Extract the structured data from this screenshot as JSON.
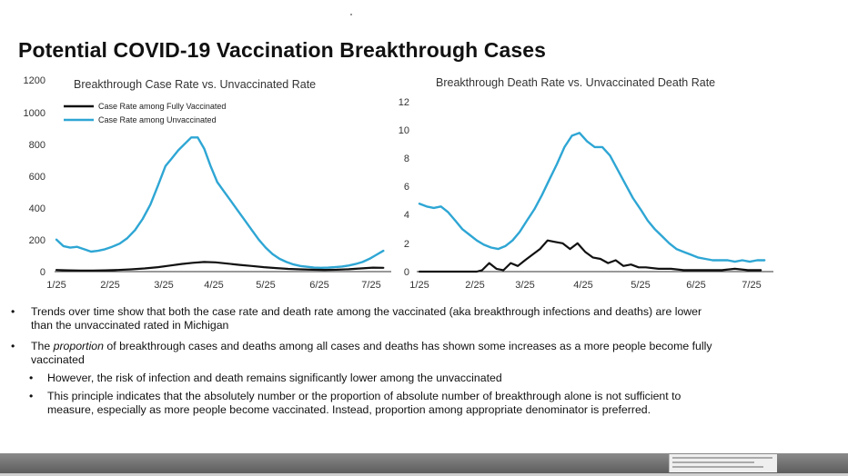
{
  "slide": {
    "title": "Potential COVID-19 Vaccination Breakthrough Cases"
  },
  "colors": {
    "vaccinated": "#111111",
    "unvaccinated": "#2ea6d4",
    "axis": "#333333"
  },
  "chart_data": [
    {
      "type": "line",
      "title": "Breakthrough Case Rate vs. Unvaccinated Rate",
      "xlabel": "",
      "ylabel": "",
      "ylim": [
        0,
        1200
      ],
      "yticks": [
        "0",
        "200",
        "400",
        "600",
        "800",
        "1000",
        "1200"
      ],
      "x_tick_labels": [
        "1/25",
        "2/25",
        "3/25",
        "4/25",
        "5/25",
        "6/25",
        "7/25"
      ],
      "grid": false,
      "legend": "top-left",
      "series": [
        {
          "name": "Case Rate among Fully Vaccinated",
          "color": "#111111",
          "x": [
            "1/25",
            "2/1",
            "2/8",
            "2/15",
            "2/22",
            "3/1",
            "3/8",
            "3/15",
            "3/22",
            "3/29",
            "4/5",
            "4/12",
            "4/19",
            "4/26",
            "5/3",
            "5/10",
            "5/17",
            "5/24",
            "5/31",
            "6/7",
            "6/14",
            "6/21",
            "6/28",
            "7/5",
            "7/12",
            "7/19",
            "7/26",
            "8/1"
          ],
          "values": [
            10,
            8,
            7,
            7,
            8,
            10,
            14,
            20,
            28,
            38,
            48,
            55,
            60,
            58,
            50,
            42,
            35,
            28,
            22,
            17,
            14,
            12,
            11,
            12,
            15,
            20,
            25,
            24
          ]
        },
        {
          "name": "Case Rate among Unvaccinated",
          "color": "#2ea6d4",
          "x": [
            "1/25",
            "1/29",
            "2/2",
            "2/6",
            "2/10",
            "2/14",
            "2/18",
            "2/22",
            "2/26",
            "3/2",
            "3/6",
            "3/10",
            "3/14",
            "3/18",
            "3/22",
            "3/26",
            "3/30",
            "4/3",
            "4/7",
            "4/11",
            "4/15",
            "4/19",
            "4/23",
            "4/27",
            "5/1",
            "5/5",
            "5/9",
            "5/13",
            "5/17",
            "5/21",
            "5/25",
            "5/29",
            "6/2",
            "6/6",
            "6/10",
            "6/14",
            "6/18",
            "6/22",
            "6/26",
            "6/30",
            "7/4",
            "7/8",
            "7/12",
            "7/16",
            "7/20",
            "7/24",
            "7/28",
            "8/1"
          ],
          "values": [
            200,
            160,
            150,
            155,
            140,
            125,
            130,
            140,
            155,
            175,
            210,
            260,
            330,
            420,
            540,
            660,
            710,
            760,
            800,
            840,
            840,
            770,
            660,
            560,
            500,
            440,
            380,
            320,
            260,
            200,
            150,
            110,
            80,
            60,
            45,
            35,
            30,
            25,
            24,
            25,
            28,
            32,
            38,
            48,
            60,
            80,
            105,
            130
          ]
        }
      ]
    },
    {
      "type": "line",
      "title": "Breakthrough Death Rate vs. Unvaccinated Death Rate",
      "xlabel": "",
      "ylabel": "",
      "ylim": [
        0,
        12
      ],
      "yticks": [
        "0",
        "2",
        "4",
        "6",
        "8",
        "10",
        "12"
      ],
      "x_tick_labels": [
        "1/25",
        "2/25",
        "3/25",
        "4/25",
        "5/25",
        "6/25",
        "7/25"
      ],
      "grid": false,
      "legend": "",
      "series": [
        {
          "color": "#111111",
          "x": [
            "1/25",
            "2/1",
            "2/8",
            "2/15",
            "2/22",
            "2/26",
            "3/1",
            "3/5",
            "3/9",
            "3/13",
            "3/17",
            "3/21",
            "3/25",
            "3/29",
            "4/2",
            "4/6",
            "4/10",
            "4/14",
            "4/18",
            "4/22",
            "4/26",
            "4/30",
            "5/4",
            "5/8",
            "5/12",
            "5/16",
            "5/20",
            "5/24",
            "5/28",
            "6/4",
            "6/11",
            "6/18",
            "6/25",
            "7/2",
            "7/9",
            "7/16",
            "7/23",
            "7/30"
          ],
          "values": [
            0,
            0,
            0,
            0,
            0,
            0,
            0.1,
            0.6,
            0.2,
            0.1,
            0.6,
            0.4,
            0.8,
            1.2,
            1.6,
            2.2,
            2.1,
            2.0,
            1.6,
            2.0,
            1.4,
            1.0,
            0.9,
            0.6,
            0.8,
            0.4,
            0.5,
            0.3,
            0.3,
            0.2,
            0.2,
            0.1,
            0.1,
            0.1,
            0.1,
            0.2,
            0.1,
            0.1
          ]
        },
        {
          "color": "#2ea6d4",
          "x": [
            "1/25",
            "1/29",
            "2/2",
            "2/6",
            "2/10",
            "2/14",
            "2/18",
            "2/22",
            "2/26",
            "3/2",
            "3/6",
            "3/10",
            "3/14",
            "3/18",
            "3/22",
            "3/26",
            "3/30",
            "4/3",
            "4/7",
            "4/11",
            "4/15",
            "4/19",
            "4/23",
            "4/27",
            "5/1",
            "5/5",
            "5/9",
            "5/13",
            "5/17",
            "5/21",
            "5/25",
            "5/29",
            "6/2",
            "6/6",
            "6/10",
            "6/14",
            "6/18",
            "6/22",
            "6/26",
            "6/30",
            "7/4",
            "7/8",
            "7/12",
            "7/16",
            "7/20",
            "7/24",
            "7/28",
            "8/1"
          ],
          "values": [
            4.8,
            4.6,
            4.5,
            4.6,
            4.2,
            3.6,
            3.0,
            2.6,
            2.2,
            1.9,
            1.7,
            1.6,
            1.8,
            2.2,
            2.8,
            3.6,
            4.4,
            5.4,
            6.5,
            7.6,
            8.8,
            9.6,
            9.8,
            9.2,
            8.8,
            8.8,
            8.2,
            7.2,
            6.2,
            5.2,
            4.4,
            3.6,
            3.0,
            2.5,
            2.0,
            1.6,
            1.4,
            1.2,
            1.0,
            0.9,
            0.8,
            0.8,
            0.8,
            0.7,
            0.8,
            0.7,
            0.8,
            0.8
          ]
        }
      ]
    }
  ],
  "bullets": [
    {
      "level": 1,
      "marker": "•",
      "text": "Trends over time show that both the case rate and death rate among the vaccinated (aka breakthrough infections and deaths) are lower"
    },
    {
      "level": 1,
      "marker": "",
      "text": "than the unvaccinated rated in Michigan"
    },
    {
      "level": 1,
      "marker": "•",
      "pre": "The ",
      "em": "proportion",
      "post": " of breakthrough cases and deaths among all cases and deaths has shown some increases as a more people become fully"
    },
    {
      "level": 1,
      "marker": "",
      "text": "vaccinated"
    },
    {
      "level": 2,
      "marker": "•",
      "text": "However, the risk of infection and death remains significantly lower among the unvaccinated"
    },
    {
      "level": 2,
      "marker": "•",
      "text": "This principle indicates that the absolutely number or the proportion of absolute number of breakthrough alone is not sufficient to"
    },
    {
      "level": 2,
      "marker": "",
      "text": "measure, especially as more people become vaccinated.  Instead, proportion among appropriate denominator is preferred."
    }
  ]
}
